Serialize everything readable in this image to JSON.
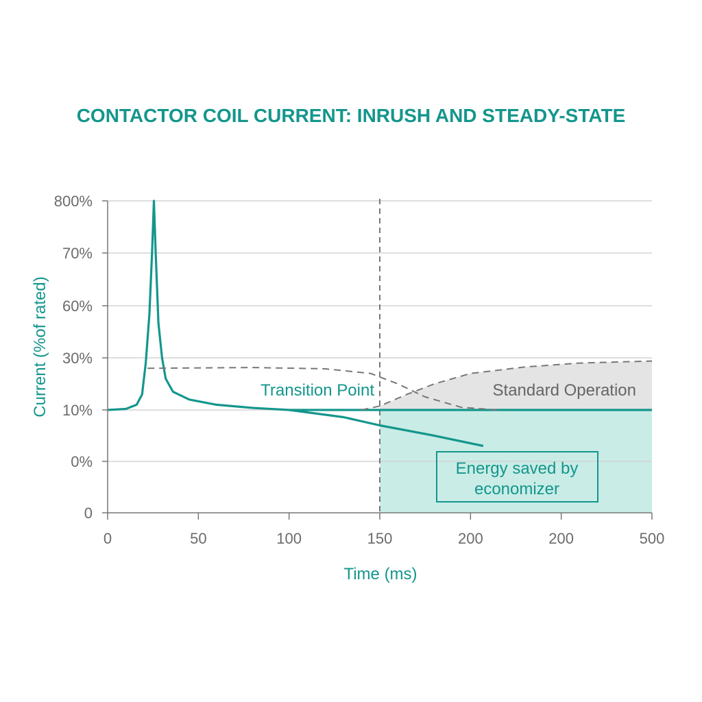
{
  "chart_data": {
    "type": "line",
    "title": "CONTACTOR COIL CURRENT: INRUSH AND STEADY-STATE",
    "xlabel": "Time (ms)",
    "ylabel": "Current (%of rated)",
    "x_tick_labels": [
      "0",
      "50",
      "100",
      "150",
      "200",
      "200",
      "500"
    ],
    "y_tick_labels": [
      "0",
      "0%",
      "10%",
      "30%",
      "60%",
      "70%",
      "800%"
    ],
    "xlim": [
      0,
      300
    ],
    "grid": true,
    "colors": {
      "accent": "#14968c",
      "fill_saved": "#c9ece6",
      "fill_standard": "#e4e4e4",
      "dashed": "#777777"
    },
    "series": [
      {
        "role": "coil-current",
        "style": "solid",
        "points": [
          [
            0,
            10
          ],
          [
            10,
            10.4
          ],
          [
            16,
            12
          ],
          [
            19,
            16
          ],
          [
            21,
            28
          ],
          [
            23,
            55
          ],
          [
            24.5,
            70
          ],
          [
            25.5,
            800
          ],
          [
            26.5,
            70
          ],
          [
            28,
            50
          ],
          [
            30,
            30
          ],
          [
            32,
            22
          ],
          [
            36,
            17
          ],
          [
            45,
            14
          ],
          [
            60,
            12
          ],
          [
            80,
            10.8
          ],
          [
            100,
            10
          ],
          [
            300,
            10
          ]
        ]
      },
      {
        "role": "economized-current",
        "style": "solid",
        "points": [
          [
            100,
            10
          ],
          [
            130,
            8.6
          ],
          [
            150,
            7
          ],
          [
            180,
            5
          ],
          [
            207,
            3
          ]
        ]
      },
      {
        "role": "hold-current-standard",
        "style": "dashed",
        "points": [
          [
            22,
            26
          ],
          [
            80,
            26.3
          ],
          [
            120,
            25.8
          ],
          [
            145,
            24
          ],
          [
            160,
            20
          ],
          [
            175,
            15
          ],
          [
            195,
            11
          ],
          [
            215,
            10
          ]
        ]
      },
      {
        "role": "standard-operation",
        "style": "dashed",
        "points": [
          [
            140,
            10
          ],
          [
            150,
            11.5
          ],
          [
            165,
            16
          ],
          [
            180,
            20
          ],
          [
            200,
            24
          ],
          [
            230,
            26.5
          ],
          [
            260,
            28
          ],
          [
            300,
            28.8
          ]
        ]
      }
    ],
    "transition_x": 150,
    "annotations": {
      "transition": "Transition Point",
      "standard": "Standard Operation",
      "saved": [
        "Energy saved by",
        "economizer"
      ]
    }
  }
}
